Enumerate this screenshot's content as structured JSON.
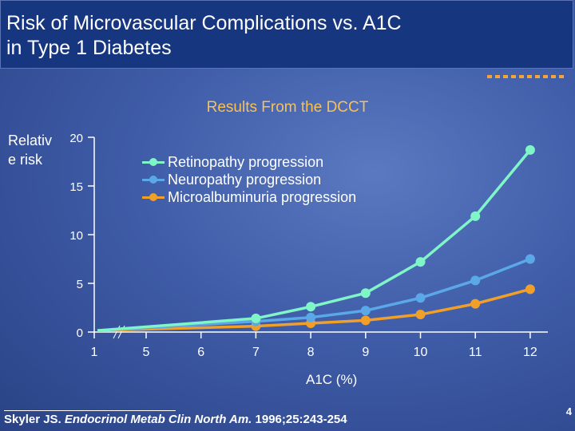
{
  "title": "Risk of Microvascular Complications vs. A1C\nin Type 1 Diabetes",
  "page_number": "4",
  "citation": {
    "authors": "Skyler JS. ",
    "journal": "Endocrinol Metab Clin North Am.",
    "details": " 1996;25:243-254"
  },
  "chart_data": {
    "type": "line",
    "title": "Results From the DCCT",
    "xlabel": "A1C (%)",
    "ylabel": "Relative risk",
    "x": [
      6,
      7,
      8,
      9,
      10,
      11,
      12
    ],
    "x_tick_labels": [
      "1",
      "5",
      "6",
      "7",
      "8",
      "9",
      "10",
      "11",
      "12"
    ],
    "y_tick_labels": [
      "0",
      "5",
      "10",
      "15",
      "20"
    ],
    "ylim": [
      0,
      20
    ],
    "axis_break": true,
    "legend_position": "top-center",
    "series": [
      {
        "name": "Retinopathy progression",
        "color": "#7ff5c8",
        "values": [
          1.4,
          2.6,
          4.0,
          7.2,
          11.9,
          18.7
        ],
        "x": [
          7,
          8,
          9,
          10,
          11,
          12
        ]
      },
      {
        "name": "Neuropathy progression",
        "color": "#5aa8e8",
        "values": [
          1.1,
          1.5,
          2.2,
          3.5,
          5.3,
          7.5
        ],
        "x": [
          7,
          8,
          9,
          10,
          11,
          12
        ]
      },
      {
        "name": "Microalbuminuria progression",
        "color": "#f0a028",
        "values": [
          0.6,
          0.9,
          1.2,
          1.8,
          2.9,
          4.4
        ],
        "x": [
          7,
          8,
          9,
          10,
          11,
          12
        ]
      }
    ]
  }
}
